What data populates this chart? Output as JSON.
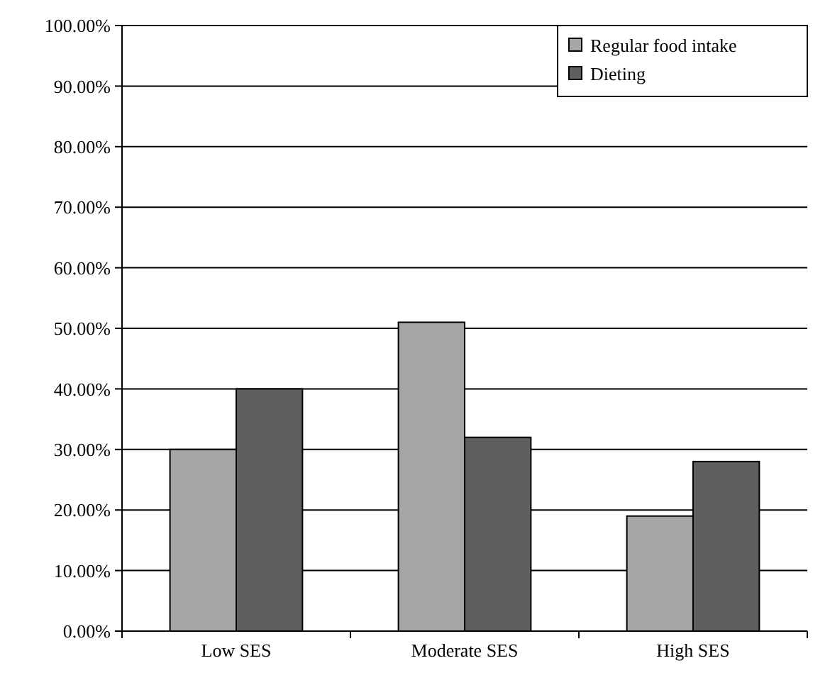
{
  "chart_data": {
    "type": "bar",
    "categories": [
      "Low SES",
      "Moderate SES",
      "High SES"
    ],
    "series": [
      {
        "name": "Regular food intake",
        "color": "#a6a6a6",
        "values": [
          30,
          51,
          19
        ]
      },
      {
        "name": "Dieting",
        "color": "#5f5f5f",
        "values": [
          40,
          32,
          28
        ]
      }
    ],
    "ylim": [
      0,
      100
    ],
    "yticks": [
      {
        "value": 0,
        "label": "0.00%"
      },
      {
        "value": 10,
        "label": "10.00%"
      },
      {
        "value": 20,
        "label": "20.00%"
      },
      {
        "value": 30,
        "label": "30.00%"
      },
      {
        "value": 40,
        "label": "40.00%"
      },
      {
        "value": 50,
        "label": "50.00%"
      },
      {
        "value": 60,
        "label": "60.00%"
      },
      {
        "value": 70,
        "label": "70.00%"
      },
      {
        "value": 80,
        "label": "80.00%"
      },
      {
        "value": 90,
        "label": "90.00%"
      },
      {
        "value": 100,
        "label": "100.00%"
      }
    ],
    "grid": "y",
    "legend": "top right"
  }
}
